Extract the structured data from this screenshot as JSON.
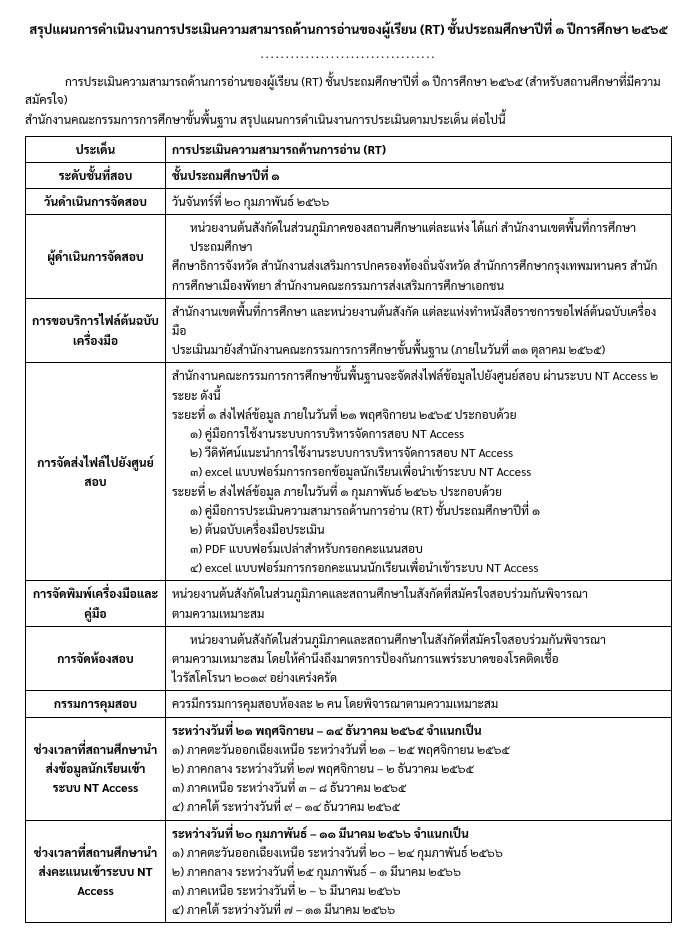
{
  "title": "สรุปแผนการดำเนินงานการประเมินความสามารถด้านการอ่านของผู้เรียน (RT)  ชั้นประถมศึกษาปีที่ ๑ ปีการศึกษา ๒๕๖๕",
  "divider": "...................................",
  "intro1": "การประเมินความสามารถด้านการอ่านของผู้เรียน (RT) ชั้นประถมศึกษาปีที่ ๑ ปีการศึกษา ๒๕๖๕ (สำหรับสถานศึกษาที่มีความสมัครใจ)",
  "intro2": "สำนักงานคณะกรรมการการศึกษาขั้นพื้นฐาน สรุปแผนการดำเนินงานการประเมินตามประเด็น ต่อไปนี้",
  "rows": {
    "r1": {
      "label": "ประเด็น",
      "content": "การประเมินความสามารถด้านการอ่าน (RT)"
    },
    "r2": {
      "label": "ระดับชั้นที่สอบ",
      "content": "ชั้นประถมศึกษาปีที่ ๑"
    },
    "r3": {
      "label": "วันดำเนินการจัดสอบ",
      "content": "วันจันทร์ที่ ๒๐ กุมภาพันธ์ ๒๕๖๖"
    },
    "r4": {
      "label": "ผู้ดำเนินการจัดสอบ",
      "line1": "หน่วยงานต้นสังกัดในส่วนภูมิภาคของสถานศึกษาแต่ละแห่ง ได้แก่ สำนักงานเขตพื้นที่การศึกษาประถมศึกษา",
      "line2": "ศึกษาธิการจังหวัด สำนักงานส่งเสริมการปกครองท้องถิ่นจังหวัด สำนักการศึกษากรุงเทพมหานคร สำนัก",
      "line3": "การศึกษาเมืองพัทยา สำนักงานคณะกรรมการส่งเสริมการศึกษาเอกชน"
    },
    "r5": {
      "label": "การขอบริการไฟล์ต้นฉบับเครื่องมือ",
      "line1": "สำนักงานเขตพื้นที่การศึกษา และหน่วยงานต้นสังกัด แต่ละแห่งทำหนังสือราชการขอไฟล์ต้นฉบับเครื่องมือ",
      "line2": "ประเมินมายังสำนักงานคณะกรรมการการศึกษาขั้นพื้นฐาน (ภายในวันที่ ๓๑ ตุลาคม ๒๕๖๕)"
    },
    "r6": {
      "label": "การจัดส่งไฟล์ไปยังศูนย์สอบ",
      "line1": "สำนักงานคณะกรรมการการศึกษาขั้นพื้นฐานจะจัดส่งไฟล์ข้อมูลไปยังศูนย์สอบ ผ่านระบบ NT Access ๒ ระยะ ดังนี้",
      "line2": "ระยะที่ ๑ ส่งไฟล์ข้อมูล ภายในวันที่ ๒๑ พฤศจิกายน ๒๕๖๕ ประกอบด้วย",
      "line3": "๑) คู่มือการใช้งานระบบการบริหารจัดการสอบ NT Access",
      "line4": "๒) วีดิทัศน์แนะนำการใช้งานระบบการบริหารจัดการสอบ NT Access",
      "line5": "๓) excel แบบฟอร์มการกรอกข้อมูลนักเรียนเพื่อนำเข้าระบบ NT Access",
      "line6": "ระยะที่ ๒ ส่งไฟล์ข้อมูล ภายในวันที่ ๑ กุมภาพันธ์ ๒๕๖๖ ประกอบด้วย",
      "line7": "๑) คู่มือการประเมินความสามารถด้านการอ่าน (RT) ชั้นประถมศึกษาปีที่ ๑",
      "line8": "๒) ต้นฉบับเครื่องมือประเมิน",
      "line9": "๓)  PDF แบบฟอร์มเปล่าสำหรับกรอกคะแนนสอบ",
      "line10": "๔) excel แบบฟอร์มการกรอกคะแนนนักเรียนเพื่อนำเข้าระบบ NT Access"
    },
    "r7": {
      "label": "การจัดพิมพ์เครื่องมือและคู่มือ",
      "line1": "หน่วยงานต้นสังกัดในส่วนภูมิภาคและสถานศึกษาในสังกัดที่สมัครใจสอบร่วมกันพิจารณา",
      "line2": "ตามความเหมาะสม"
    },
    "r8": {
      "label": "การจัดห้องสอบ",
      "line1": "หน่วยงานต้นสังกัดในส่วนภูมิภาคและสถานศึกษาในสังกัดที่สมัครใจสอบร่วมกันพิจารณา",
      "line2": "ตามความเหมาะสม โดยให้คำนึงถึงมาตรการป้องกันการแพร่ระบาดของโรคติดเชื้อ",
      "line3": "ไวรัสโคโรนา ๒๐๑๙ อย่างเคร่งครัด"
    },
    "r9": {
      "label": "กรรมการคุมสอบ",
      "content": "ควรมีกรรมการคุมสอบห้องละ ๒ คน โดยพิจารณาตามความเหมาะสม"
    },
    "r10": {
      "label": "ช่วงเวลาที่สถานศึกษานำส่งข้อมูลนักเรียนเข้าระบบ NT Access",
      "line0": "ระหว่างวันที่ ๒๑ พฤศจิกายน – ๑๔ ธันวาคม ๒๕๖๕ จำแนกเป็น",
      "line1": "๑) ภาคตะวันออกเฉียงเหนือ ระหว่างวันที่ ๒๑ – ๒๕ พฤศจิกายน ๒๕๖๕",
      "line2": "๒) ภาคกลาง ระหว่างวันที่ ๒๗  พฤศจิกายน – ๒ ธันวาคม ๒๕๖๕",
      "line3": "๓) ภาคเหนือ ระหว่างวันที่ ๓ – ๘ ธันวาคม ๒๕๖๕",
      "line4": "๔) ภาคใต้ ระหว่างวันที่ ๙ – ๑๔ ธันวาคม ๒๕๖๕"
    },
    "r11": {
      "label": "ช่วงเวลาที่สถานศึกษานำส่งคะแนนเข้าระบบ NT Access",
      "line0": "ระหว่างวันที่ ๒๐ กุมภาพันธ์ – ๑๑ มีนาคม ๒๕๖๖ จำแนกเป็น",
      "line1": "๑) ภาคตะวันออกเฉียงเหนือ ระหว่างวันที่ ๒๐ – ๒๔ กุมภาพันธ์ ๒๕๖๖",
      "line2": "๒) ภาคกลาง ระหว่างวันที่ ๒๕ กุมภาพันธ์ – ๑ มีนาคม ๒๕๖๖",
      "line3": "๓) ภาคเหนือ ระหว่างวันที่ ๒ – ๖ มีนาคม ๒๕๖๖",
      "line4": "๔) ภาคใต้ ระหว่างวันที่ ๗ – ๑๑ มีนาคม ๒๕๖๖"
    }
  }
}
